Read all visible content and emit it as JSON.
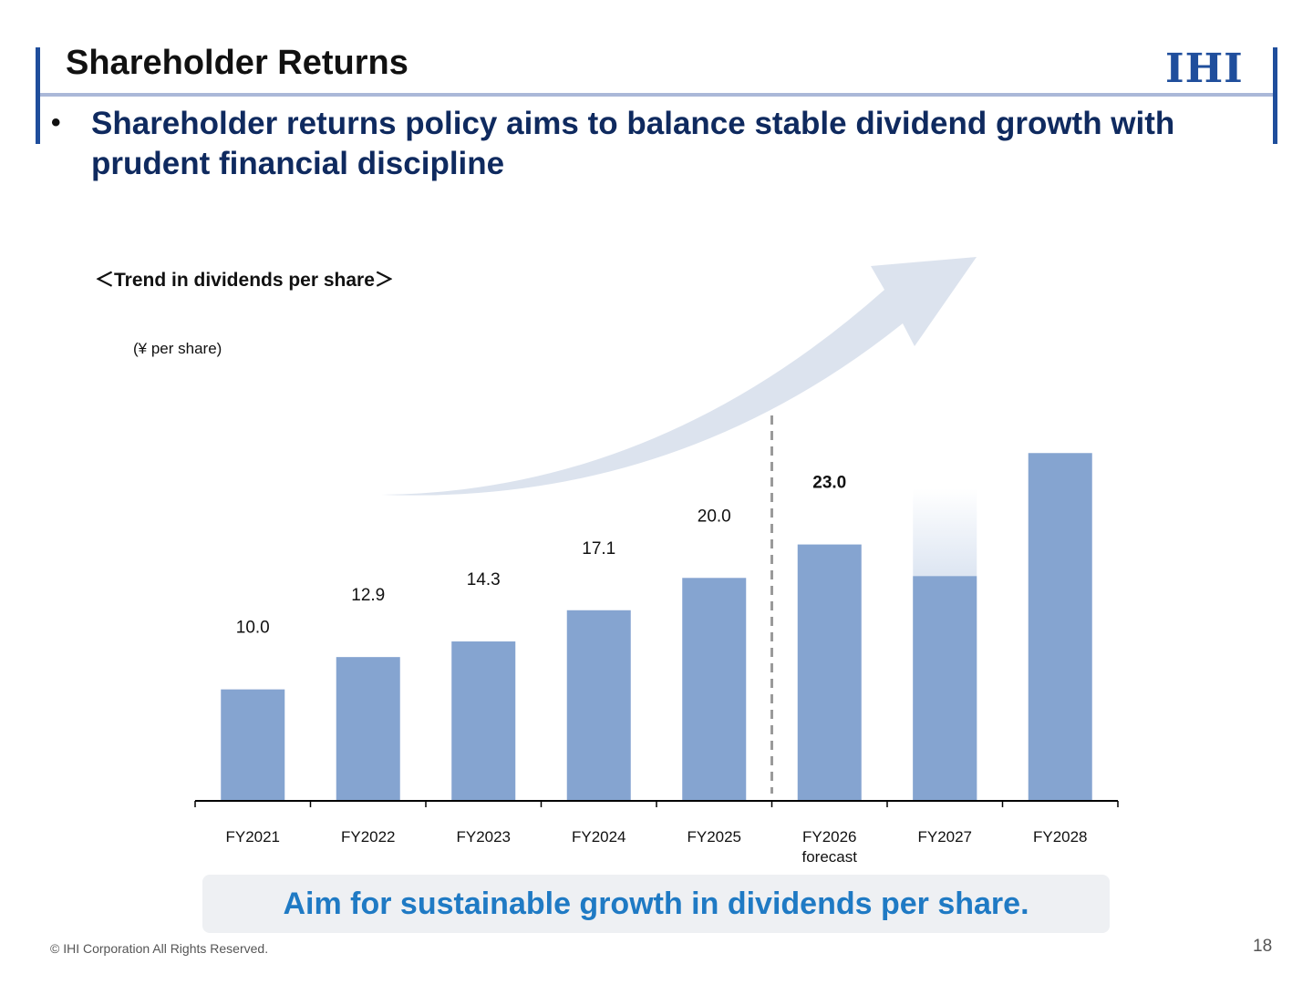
{
  "header": {
    "title": "Shareholder Returns",
    "logo_text": "IHI"
  },
  "bullet": {
    "text": "Shareholder returns policy aims to balance stable dividend growth with prudent financial discipline"
  },
  "chart_data": {
    "type": "bar",
    "title": "＜Trend in dividends per share＞",
    "unit": "(¥ per share)",
    "categories": [
      "FY2021",
      "FY2022",
      "FY2023",
      "FY2024",
      "FY2025",
      "FY2026\nforecast",
      "FY2027",
      "FY2028"
    ],
    "values": [
      10.0,
      12.9,
      14.3,
      17.1,
      20.0,
      23.0,
      28.0,
      31.2
    ],
    "value_labels": [
      "10.0",
      "12.9",
      "14.3",
      "17.1",
      "20.0",
      "23.0",
      "",
      ""
    ],
    "fade_top": [
      false,
      false,
      false,
      false,
      false,
      false,
      true,
      false
    ],
    "ylim": [
      0,
      34
    ],
    "bar_color": "#85a4d0",
    "arrow_color": "#dce3ee",
    "forecast_divider_after": "FY2025",
    "grid": false
  },
  "banner": {
    "text": "Aim for sustainable growth in dividends per share."
  },
  "footer": {
    "copyright": "© IHI Corporation All Rights Reserved.",
    "page_number": "18"
  }
}
